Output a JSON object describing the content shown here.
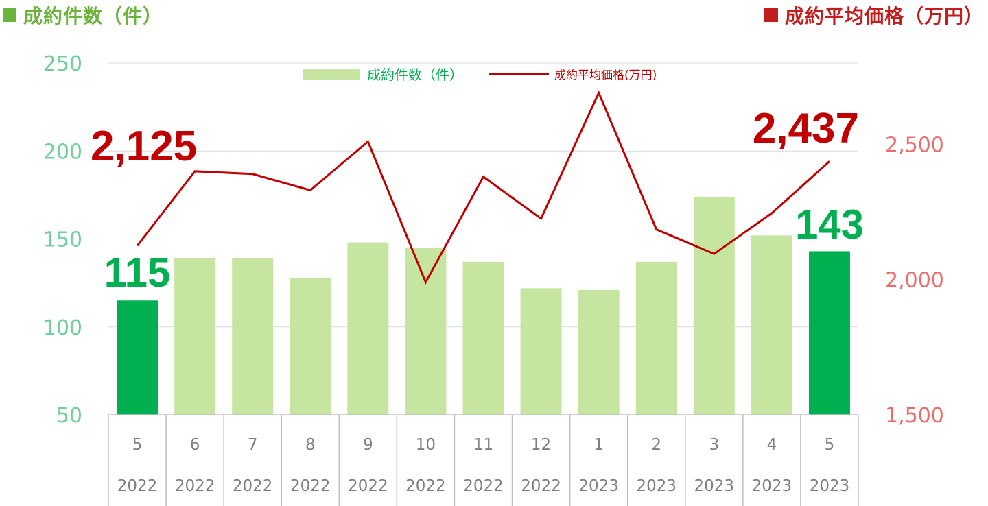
{
  "headers": {
    "left": "成約件数（件）",
    "right": "成約平均価格（万円）"
  },
  "colors": {
    "bar_normal": "#c5e5a0",
    "bar_highlight": "#00b050",
    "line": "#c00000",
    "left_axis_text": "#70cf9a",
    "right_axis_text": "#ee6b6b",
    "callout_red": "#c00000",
    "callout_green": "#00b050",
    "header_green": "#6cb33e",
    "header_red": "#c41d1d"
  },
  "chart_data": {
    "type": "bar",
    "categories": [
      "5",
      "6",
      "7",
      "8",
      "9",
      "10",
      "11",
      "12",
      "1",
      "2",
      "3",
      "4",
      "5"
    ],
    "years": [
      "2022",
      "2022",
      "2022",
      "2022",
      "2022",
      "2022",
      "2022",
      "2022",
      "2023",
      "2023",
      "2023",
      "2023",
      "2023"
    ],
    "series": [
      {
        "name": "成約件数(件)",
        "type": "bar",
        "axis": "left",
        "values": [
          115,
          139,
          139,
          128,
          148,
          145,
          137,
          122,
          121,
          137,
          174,
          152,
          143
        ],
        "highlight": [
          true,
          false,
          false,
          false,
          false,
          false,
          false,
          false,
          false,
          false,
          false,
          false,
          true
        ]
      },
      {
        "name": "成約平均価格(万円)",
        "type": "line",
        "axis": "right",
        "values": [
          2125,
          2400,
          2390,
          2330,
          2510,
          1990,
          2380,
          2225,
          2690,
          2185,
          2095,
          2245,
          2437
        ]
      }
    ],
    "left_axis": {
      "ylim": [
        50,
        250
      ],
      "ticks": [
        "50",
        "100",
        "150",
        "200",
        "250"
      ]
    },
    "right_axis": {
      "ylim": [
        1500,
        2800
      ],
      "ticks": [
        "1,500",
        "2,000",
        "2,500"
      ]
    },
    "grid": true,
    "legend": {
      "placement": "top-center",
      "items": [
        "成約件数（件）",
        "成約平均価格(万円)"
      ]
    },
    "callouts": {
      "price_first": "2,125",
      "price_last": "2,437",
      "count_first": "115",
      "count_last": "143"
    }
  }
}
